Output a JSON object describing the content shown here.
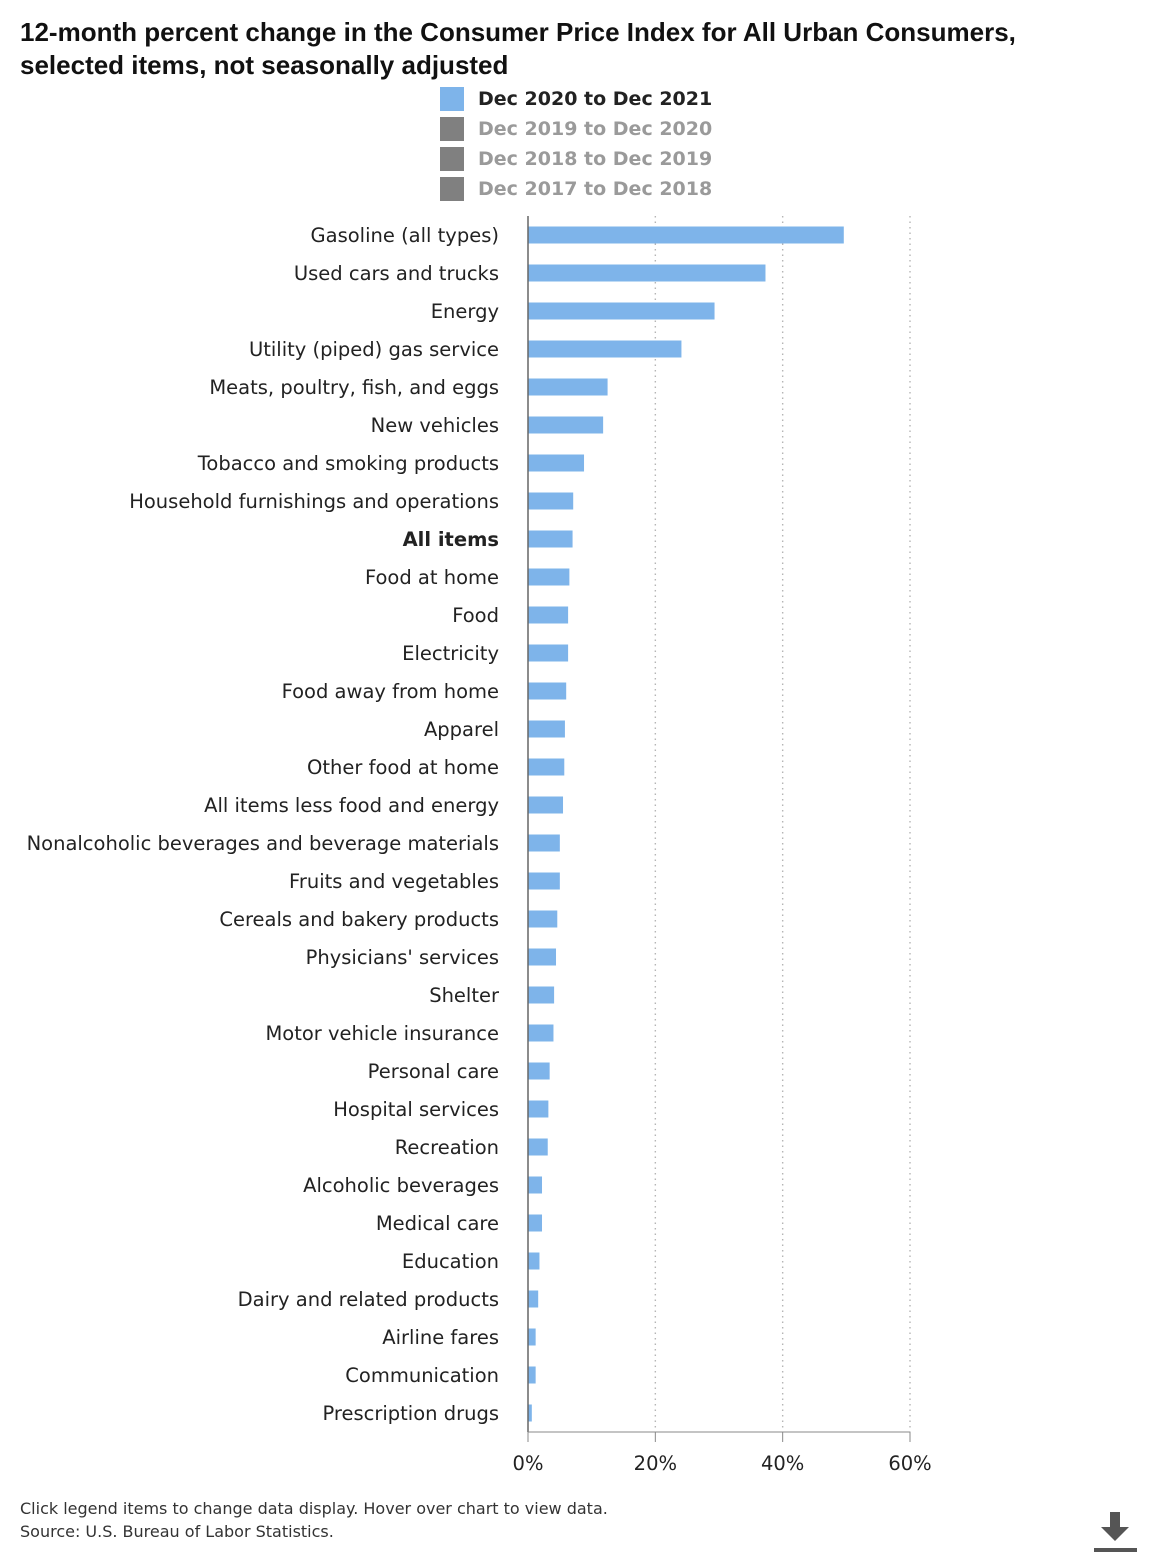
{
  "title": "12-month percent change in the Consumer Price Index for All Urban Consumers, selected items, not seasonally adjusted",
  "legend": [
    {
      "label": "Dec 2020 to Dec 2021",
      "color": "#7eb4ea",
      "active": true
    },
    {
      "label": "Dec 2019 to Dec 2020",
      "color": "#808080",
      "active": false
    },
    {
      "label": "Dec 2018 to Dec 2019",
      "color": "#808080",
      "active": false
    },
    {
      "label": "Dec 2017 to Dec 2018",
      "color": "#808080",
      "active": false
    }
  ],
  "chart_data": {
    "type": "bar",
    "orientation": "horizontal",
    "title": "12-month percent change in the Consumer Price Index for All Urban Consumers, selected items, not seasonally adjusted",
    "xlabel": "",
    "ylabel": "",
    "xlim": [
      0,
      60
    ],
    "x_ticks": [
      "0%",
      "20%",
      "40%",
      "60%"
    ],
    "x_tick_values": [
      0,
      20,
      40,
      60
    ],
    "grid": "vertical dotted",
    "legend_position": "top",
    "bold_categories": [
      "All items"
    ],
    "categories": [
      "Gasoline (all types)",
      "Used cars and trucks",
      "Energy",
      "Utility (piped) gas service",
      "Meats, poultry, fish, and eggs",
      "New vehicles",
      "Tobacco and smoking products",
      "Household furnishings and operations",
      "All items",
      "Food at home",
      "Food",
      "Electricity",
      "Food away from home",
      "Apparel",
      "Other food at home",
      "All items less food and energy",
      "Nonalcoholic beverages and beverage materials",
      "Fruits and vegetables",
      "Cereals and bakery products",
      "Physicians' services",
      "Shelter",
      "Motor vehicle insurance",
      "Personal care",
      "Hospital services",
      "Recreation",
      "Alcoholic beverages",
      "Medical care",
      "Education",
      "Dairy and related products",
      "Airline fares",
      "Communication",
      "Prescription drugs"
    ],
    "series": [
      {
        "name": "Dec 2020 to Dec 2021",
        "color": "#7eb4ea",
        "values": [
          49.6,
          37.3,
          29.3,
          24.1,
          12.5,
          11.8,
          8.8,
          7.1,
          7.0,
          6.5,
          6.3,
          6.3,
          6.0,
          5.8,
          5.7,
          5.5,
          5.0,
          5.0,
          4.6,
          4.4,
          4.1,
          4.0,
          3.4,
          3.2,
          3.1,
          2.2,
          2.2,
          1.8,
          1.6,
          1.2,
          1.2,
          0.6
        ]
      }
    ]
  },
  "footer": {
    "note": "Click legend items to change data display. Hover over chart to view data.",
    "source": "Source: U.S. Bureau of Labor Statistics."
  },
  "icons": {
    "download": "download-icon"
  }
}
